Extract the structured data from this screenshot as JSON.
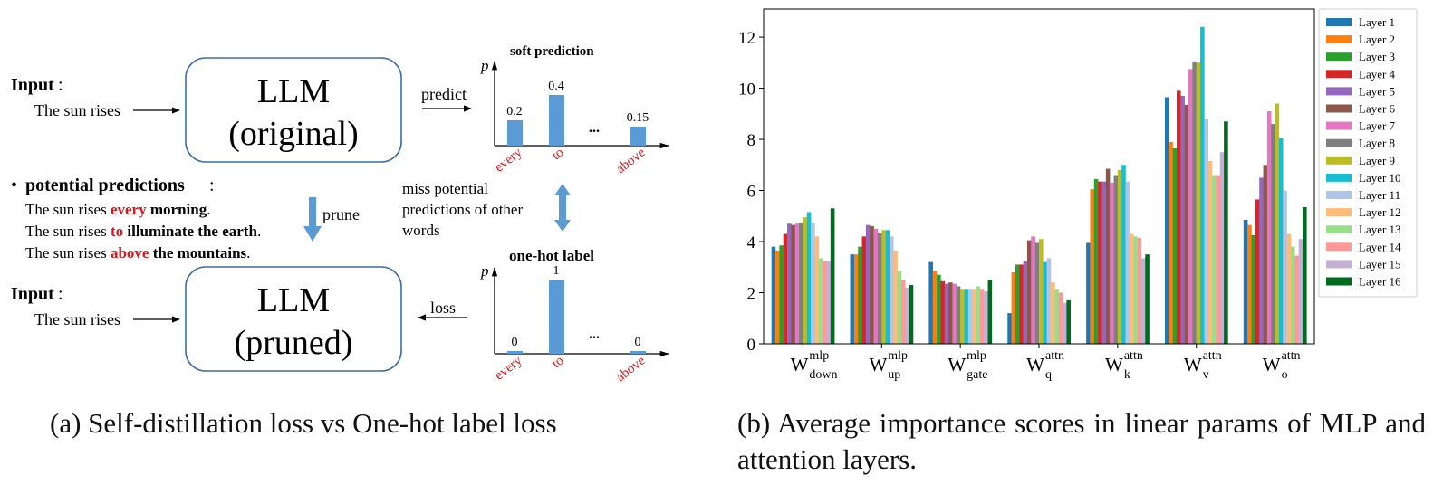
{
  "panel_a": {
    "caption": "(a) Self-distillation loss vs One-hot label loss",
    "top_input": {
      "label": "Input",
      "colon": ":",
      "sentence": "The sun rises"
    },
    "llm_original": {
      "line1": "LLM",
      "line2": "(original)"
    },
    "predict_label": "predict",
    "soft_prediction": {
      "title": "soft prediction",
      "axis_label": "p",
      "categories": [
        "every",
        "to",
        "above"
      ],
      "values": [
        0.2,
        0.4,
        0.15
      ],
      "value_labels": [
        "0.2",
        "0.4",
        "0.15"
      ],
      "ellipsis": "..."
    },
    "potential": {
      "bullet": "•",
      "label": "potential predictions",
      "colon": ":",
      "lines": [
        {
          "prefix": "The sun rises ",
          "highlight": "every",
          "rest": " morning",
          "end": "."
        },
        {
          "prefix": "The sun rises ",
          "highlight": "to",
          "rest": " illuminate the earth",
          "end": "."
        },
        {
          "prefix": "The sun rises ",
          "highlight": "above",
          "rest": " the mountains",
          "end": "."
        }
      ]
    },
    "prune_label": "prune",
    "miss_text": [
      "miss potential",
      "predictions of other",
      "words"
    ],
    "one_hot": {
      "title": "one-hot label",
      "axis_label": "p",
      "categories": [
        "every",
        "to",
        "above"
      ],
      "values": [
        0,
        1,
        0
      ],
      "value_labels": [
        "0",
        "1",
        "0"
      ],
      "ellipsis": "..."
    },
    "bottom_input": {
      "label": "Input",
      "colon": ":",
      "sentence": "The sun rises"
    },
    "llm_pruned": {
      "line1": "LLM",
      "line2": "(pruned)"
    },
    "loss_label": "loss",
    "colors": {
      "bar": "#5b9bd5",
      "highlight": "#e0161b",
      "box": "#3b6ea5",
      "arrow": "#5b9bd5"
    }
  },
  "panel_b": {
    "caption": "(b) Average importance scores in linear params of MLP and attention layers."
  },
  "chart_data": {
    "type": "bar",
    "categories": [
      {
        "base": "W",
        "sup": "mlp",
        "sub": "down"
      },
      {
        "base": "W",
        "sup": "mlp",
        "sub": "up"
      },
      {
        "base": "W",
        "sup": "mlp",
        "sub": "gate"
      },
      {
        "base": "W",
        "sup": "attn",
        "sub": "q"
      },
      {
        "base": "W",
        "sup": "attn",
        "sub": "k"
      },
      {
        "base": "W",
        "sup": "attn",
        "sub": "v"
      },
      {
        "base": "W",
        "sup": "attn",
        "sub": "o"
      }
    ],
    "ylim": [
      0,
      13.1
    ],
    "yticks": [
      0,
      2,
      4,
      6,
      8,
      10,
      12
    ],
    "grid": false,
    "legend_position": "right",
    "series": [
      {
        "name": "Layer 1",
        "color": "#1f77b4",
        "values": [
          3.8,
          3.5,
          3.2,
          1.2,
          3.95,
          9.65,
          4.85
        ]
      },
      {
        "name": "Layer 2",
        "color": "#ff7f0e",
        "values": [
          3.65,
          3.5,
          2.85,
          2.8,
          6.05,
          7.9,
          4.65
        ]
      },
      {
        "name": "Layer 3",
        "color": "#2ca02c",
        "values": [
          3.85,
          3.8,
          2.7,
          3.1,
          6.45,
          7.65,
          4.25
        ]
      },
      {
        "name": "Layer 4",
        "color": "#d62728",
        "values": [
          4.3,
          4.2,
          2.45,
          3.1,
          6.35,
          9.9,
          5.65
        ]
      },
      {
        "name": "Layer 5",
        "color": "#9467bd",
        "values": [
          4.7,
          4.65,
          2.35,
          3.25,
          6.35,
          9.7,
          6.5
        ]
      },
      {
        "name": "Layer 6",
        "color": "#8c564b",
        "values": [
          4.65,
          4.6,
          2.4,
          4.05,
          6.85,
          9.35,
          7.0
        ]
      },
      {
        "name": "Layer 7",
        "color": "#e377c2",
        "values": [
          4.7,
          4.5,
          2.35,
          4.2,
          6.3,
          10.75,
          9.1
        ]
      },
      {
        "name": "Layer 8",
        "color": "#7f7f7f",
        "values": [
          4.75,
          4.35,
          2.25,
          3.95,
          6.6,
          11.05,
          8.6
        ]
      },
      {
        "name": "Layer 9",
        "color": "#bcbd22",
        "values": [
          4.95,
          4.45,
          2.15,
          4.1,
          6.8,
          11.0,
          9.4
        ]
      },
      {
        "name": "Layer 10",
        "color": "#17becf",
        "values": [
          5.15,
          4.45,
          2.15,
          3.2,
          7.0,
          12.4,
          8.05
        ]
      },
      {
        "name": "Layer 11",
        "color": "#aec7e8",
        "values": [
          4.75,
          4.2,
          2.15,
          3.35,
          6.35,
          8.8,
          6.0
        ]
      },
      {
        "name": "Layer 12",
        "color": "#ffbb78",
        "values": [
          4.2,
          3.65,
          2.15,
          2.4,
          4.3,
          7.15,
          4.3
        ]
      },
      {
        "name": "Layer 13",
        "color": "#98df8a",
        "values": [
          3.35,
          2.85,
          2.25,
          2.15,
          4.2,
          6.6,
          3.8
        ]
      },
      {
        "name": "Layer 14",
        "color": "#ff9896",
        "values": [
          3.25,
          2.5,
          2.15,
          2.0,
          4.15,
          6.6,
          3.45
        ]
      },
      {
        "name": "Layer 15",
        "color": "#c5b0d5",
        "values": [
          3.25,
          2.2,
          2.05,
          1.6,
          3.35,
          7.5,
          4.1
        ]
      },
      {
        "name": "Layer 16",
        "color": "#006a1e",
        "values": [
          5.3,
          2.3,
          2.5,
          1.7,
          3.5,
          8.7,
          5.35
        ]
      }
    ]
  }
}
